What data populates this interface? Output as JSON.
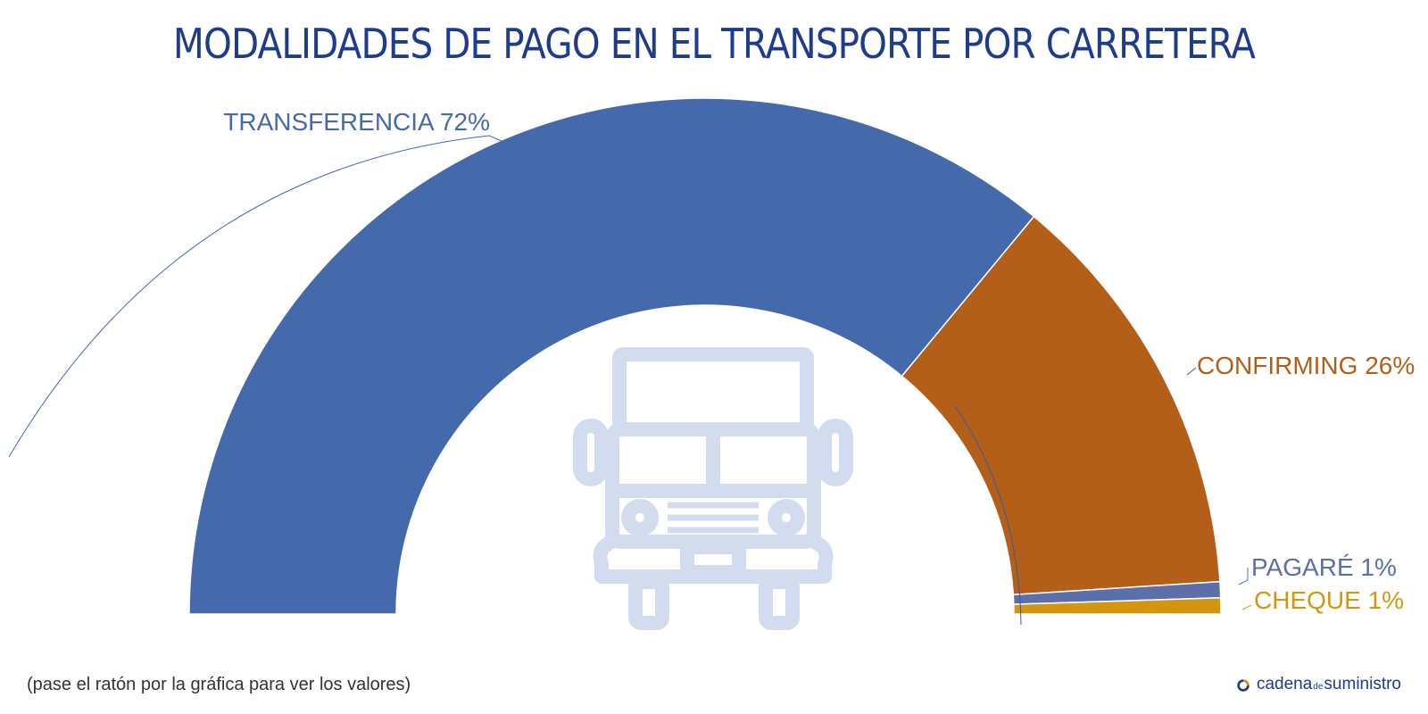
{
  "chart_data": {
    "type": "pie",
    "style": "semi-donut",
    "title": "MODALIDADES DE PAGO EN EL TRANSPORTE POR CARRETERA",
    "slices": [
      {
        "name": "TRANSFERENCIA",
        "value": 72,
        "label": "TRANSFERENCIA 72%",
        "color": "#456aab",
        "label_color": "#456aab"
      },
      {
        "name": "CONFIRMING",
        "value": 26,
        "label": "CONFIRMING 26%",
        "color": "#b45f19",
        "label_color": "#b45f19"
      },
      {
        "name": "PAGARÉ",
        "value": 1,
        "label": "PAGARÉ 1%",
        "color": "#5d6fa8",
        "label_color": "#5d6fa8"
      },
      {
        "name": "CHEQUE",
        "value": 1,
        "label": "CHEQUE 1%",
        "color": "#d4960f",
        "label_color": "#d4960f"
      }
    ],
    "legend": "none",
    "center_icon": "truck-icon"
  },
  "footer": {
    "note": "(pase el ratón por la gráfica para ver los valores)",
    "brand_part1": "cadena",
    "brand_part2": "de",
    "brand_part3": "suministro"
  },
  "colors": {
    "title": "#1e3c8c",
    "icon": "#d3dcef",
    "brand": "#1e3c8c",
    "brand_accent": "#e0861a"
  }
}
